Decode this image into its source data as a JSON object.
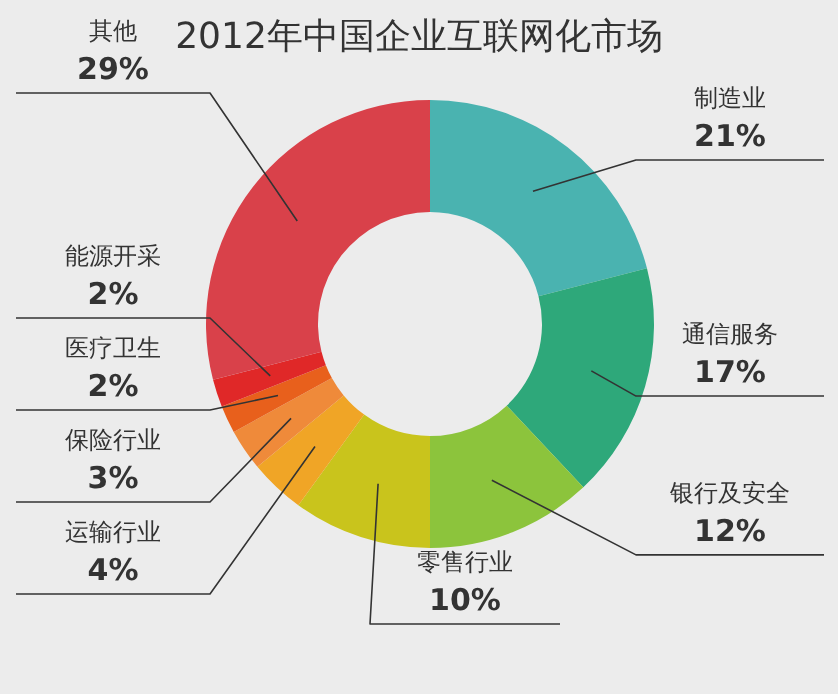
{
  "chart_data": {
    "type": "donut",
    "title": "2012年中国企业互联网化市场",
    "categories": [
      "制造业",
      "通信服务",
      "银行及安全",
      "零售行业",
      "运输行业",
      "保险行业",
      "医疗卫生",
      "能源开采",
      "其他"
    ],
    "values": [
      21,
      17,
      12,
      10,
      4,
      3,
      2,
      2,
      29
    ],
    "value_labels": [
      "21%",
      "17%",
      "12%",
      "10%",
      "4%",
      "3%",
      "2%",
      "2%",
      "29%"
    ],
    "colors": [
      "#4ab3b0",
      "#2ea87a",
      "#8cc43c",
      "#c9c41c",
      "#f0a526",
      "#ef8a3a",
      "#e8601c",
      "#e02828",
      "#d9414a"
    ]
  }
}
